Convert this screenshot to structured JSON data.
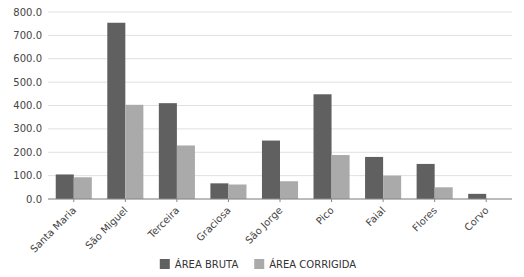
{
  "chart_data": {
    "type": "bar",
    "categories": [
      "Santa Maria",
      "São Miguel",
      "Terceira",
      "Graciosa",
      "São Jorge",
      "Pico",
      "Faial",
      "Flores",
      "Corvo"
    ],
    "series": [
      {
        "name": "ÁREA BRUTA",
        "color": "#606060",
        "values": [
          105,
          754,
          410,
          67,
          250,
          448,
          180,
          150,
          22
        ]
      },
      {
        "name": "ÁREA CORRIGIDA",
        "color": "#aaaaaa",
        "values": [
          93,
          403,
          229,
          62,
          76,
          188,
          100,
          50,
          0
        ]
      }
    ],
    "ylim": [
      0,
      800
    ],
    "yticks": [
      {
        "value": 0,
        "label": "0.0"
      },
      {
        "value": 100,
        "label": "100.0"
      },
      {
        "value": 200,
        "label": "200.0"
      },
      {
        "value": 300,
        "label": "300.0"
      },
      {
        "value": 400,
        "label": "400.0"
      },
      {
        "value": 500,
        "label": "500.0"
      },
      {
        "value": 600,
        "label": "600.0"
      },
      {
        "value": 700,
        "label": "700.0"
      },
      {
        "value": 800,
        "label": "800.0"
      }
    ],
    "grid": true,
    "legend": "bottom"
  }
}
